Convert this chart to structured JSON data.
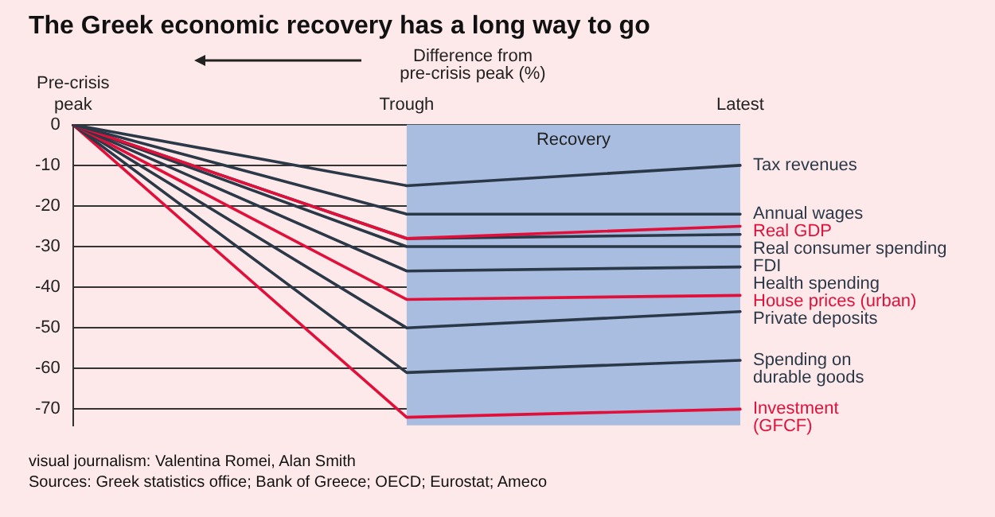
{
  "chart_data": {
    "type": "line",
    "title": "The Greek economic recovery has a long way to go",
    "ylabel": "Difference from pre-crisis peak (%)",
    "categories": [
      "Pre-crisis\npeak",
      "Trough",
      "Latest"
    ],
    "series": [
      {
        "name": "Tax revenues",
        "color": "#2b3848",
        "values": [
          0,
          -15,
          -10
        ]
      },
      {
        "name": "Annual wages",
        "color": "#2b3848",
        "values": [
          0,
          -22,
          -22
        ]
      },
      {
        "name": "Real GDP",
        "color": "#e0103a",
        "values": [
          0,
          -28,
          -25
        ]
      },
      {
        "name": "Real consumer spending",
        "color": "#2b3848",
        "values": [
          0,
          -28,
          -27
        ]
      },
      {
        "name": "FDI",
        "color": "#2b3848",
        "values": [
          0,
          -30,
          -30
        ]
      },
      {
        "name": "Health spending",
        "color": "#2b3848",
        "values": [
          0,
          -36,
          -35
        ]
      },
      {
        "name": "House prices (urban)",
        "color": "#e0103a",
        "values": [
          0,
          -43,
          -42
        ]
      },
      {
        "name": "Private deposits",
        "color": "#2b3848",
        "values": [
          0,
          -50,
          -46
        ]
      },
      {
        "name": "Spending on\ndurable goods",
        "color": "#2b3848",
        "values": [
          0,
          -61,
          -58
        ]
      },
      {
        "name": "Investment\n(GFCF)",
        "color": "#e0103a",
        "values": [
          0,
          -72,
          -70
        ]
      }
    ],
    "ylim": [
      -74,
      0
    ],
    "yticks": [
      0,
      -10,
      -20,
      -30,
      -40,
      -50,
      -60,
      -70
    ],
    "grid": "y",
    "legend": false,
    "marker": "none",
    "line_style": "solid",
    "bands": [
      {
        "axis": "x",
        "from": "Trough",
        "to": "Latest",
        "label": "Recovery",
        "color": "#a9bde0"
      }
    ],
    "annotations": [
      "visual journalism: Valentina Romei, Alan Smith",
      "Sources: Greek statistics office; Bank of Greece; OECD; Eurostat; Ameco"
    ]
  }
}
